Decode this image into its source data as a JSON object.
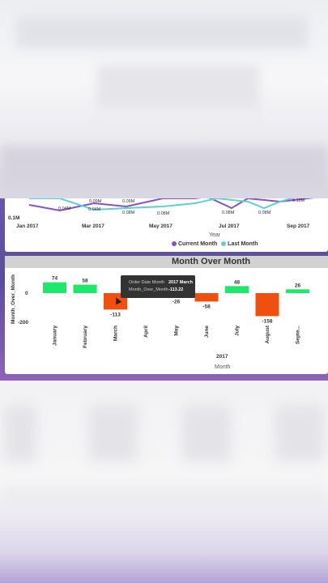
{
  "line_chart": {
    "y_ticks": [
      "0.1M"
    ],
    "x_ticks": [
      "Jan 2017",
      "Mar 2017",
      "May 2017",
      "Jul 2017",
      "Sep 2017"
    ],
    "xlabel": "Year",
    "point_labels": [
      {
        "text": "0.04M"
      },
      {
        "text": "0.09M"
      },
      {
        "text": "0.04M"
      },
      {
        "text": "0.09M"
      },
      {
        "text": "0.08M"
      },
      {
        "text": "0.08M"
      },
      {
        "text": "0.08M"
      },
      {
        "text": "0.08M"
      },
      {
        "text": "0.16M"
      }
    ],
    "legend": [
      {
        "label": "Current Month",
        "color": "#8b4fc4"
      },
      {
        "label": "Last Month",
        "color": "#5fcfd4"
      }
    ]
  },
  "chart_data": {
    "type": "bar",
    "title": "Month Over Month",
    "xlabel": "Month",
    "ylabel": "Month_Over_Month",
    "x_group_label": "2017",
    "y_ticks": [
      "0",
      "-200"
    ],
    "ylim": [
      -200,
      80
    ],
    "categories": [
      "January",
      "February",
      "March",
      "April",
      "May",
      "June",
      "July",
      "August",
      "Septe..."
    ],
    "values": [
      74,
      58,
      -113,
      0,
      -26,
      -58,
      48,
      -158,
      26
    ],
    "value_labels": [
      "74",
      "58",
      "-113",
      "",
      "-26",
      "-58",
      "48",
      "-158",
      "26"
    ],
    "colors": {
      "positive": "#1ee86a",
      "negative": "#f0500f"
    }
  },
  "tooltip": {
    "row1_key": "Order Date Month",
    "row1_value": "2017 March",
    "row2_key": "Month_Over_Month",
    "row2_value": "-113.22"
  }
}
